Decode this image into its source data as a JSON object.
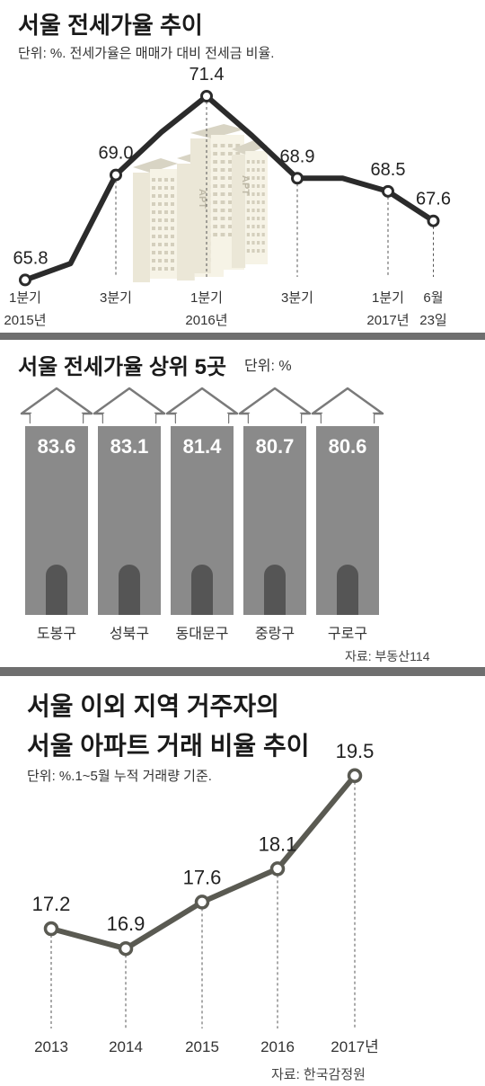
{
  "chart_data": [
    {
      "type": "line",
      "title": "서울 전세가율 추이",
      "subtitle": "단위: %. 전세가율은 매매가 대비 전세금 비율.",
      "x": [
        "2015-Q1",
        "2015-Q2",
        "2015-Q3",
        "2015-Q4",
        "2016-Q1",
        "2016-Q2",
        "2016-Q3",
        "2016-Q4",
        "2017-Q1",
        "2017-06-23"
      ],
      "values": [
        65.8,
        66.3,
        69.0,
        70.3,
        71.4,
        70.2,
        68.9,
        68.9,
        68.5,
        67.6
      ],
      "labels": [
        {
          "index": 0,
          "text": "65.8"
        },
        {
          "index": 2,
          "text": "69.0"
        },
        {
          "index": 4,
          "text": "71.4"
        },
        {
          "index": 6,
          "text": "68.9"
        },
        {
          "index": 8,
          "text": "68.5"
        },
        {
          "index": 9,
          "text": "67.6"
        }
      ],
      "ticks": [
        {
          "index": 0,
          "line1": "1분기",
          "line2": "2015년"
        },
        {
          "index": 2,
          "line1": "3분기",
          "line2": ""
        },
        {
          "index": 4,
          "line1": "1분기",
          "line2": "2016년"
        },
        {
          "index": 6,
          "line1": "3분기",
          "line2": ""
        },
        {
          "index": 8,
          "line1": "1분기",
          "line2": "2017년"
        },
        {
          "index": 9,
          "line1": "6월",
          "line2": "23일"
        }
      ],
      "illustration": {
        "sign_text": "APT"
      },
      "colors": {
        "line": "#2b2b2b"
      }
    },
    {
      "type": "bar",
      "title": "서울 전세가율 상위 5곳",
      "unit": "단위: %",
      "categories": [
        "도봉구",
        "성북구",
        "동대문구",
        "중랑구",
        "구로구"
      ],
      "values": [
        83.6,
        83.1,
        81.4,
        80.7,
        80.6
      ],
      "source": "자료: 부동산114",
      "colors": {
        "bar": "#8a8a8a",
        "door": "#555555"
      }
    },
    {
      "type": "line",
      "title_lines": [
        "서울 이외 지역 거주자의",
        "서울 아파트 거래 비율 추이"
      ],
      "subtitle": "단위: %.1~5월 누적 거래량 기준.",
      "categories": [
        "2013",
        "2014",
        "2015",
        "2016",
        "2017년"
      ],
      "values": [
        17.2,
        16.9,
        17.6,
        18.1,
        19.5
      ],
      "source": "자료: 한국감정원",
      "colors": {
        "line": "#5a5a52"
      }
    }
  ]
}
